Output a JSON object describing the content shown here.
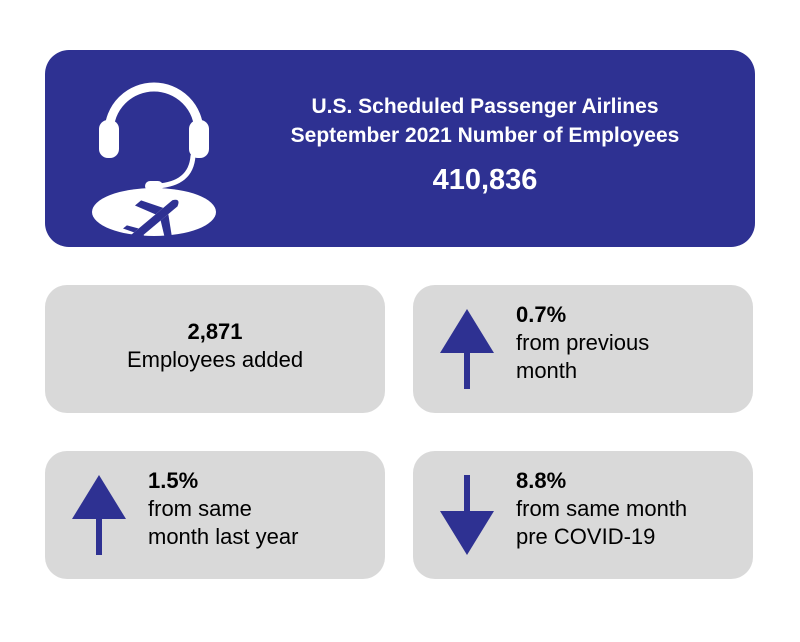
{
  "colors": {
    "banner": "#2e3192",
    "card": "#d9d9d9",
    "arrow": "#2e3192"
  },
  "banner": {
    "icon": "headset-airplane-icon",
    "title_line1": "U.S. Scheduled Passenger Airlines",
    "title_line2": "September 2021 Number of Employees",
    "value": "410,836"
  },
  "cards": [
    {
      "value": "2,871",
      "label": "Employees added"
    },
    {
      "icon": "arrow-up-icon",
      "value": "0.7%",
      "label": "from previous\nmonth"
    },
    {
      "icon": "arrow-up-icon",
      "value": "1.5%",
      "label": "from same\nmonth last year"
    },
    {
      "icon": "arrow-down-icon",
      "value": "8.8%",
      "label": "from same month\npre COVID-19"
    }
  ]
}
